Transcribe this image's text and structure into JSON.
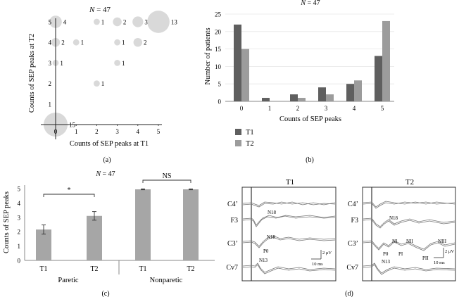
{
  "chart_data": [
    {
      "type": "bubble",
      "panel_label": "(a)",
      "title_prefix": "N",
      "title_value": " = 47",
      "xlabel": "Counts of SEP peaks at T1",
      "ylabel": "Counts of SEP peaks at T2",
      "xticks": [
        "0",
        "1",
        "2",
        "3",
        "4",
        "5"
      ],
      "yticks": [
        "1",
        "2",
        "3",
        "4",
        "5"
      ],
      "xlim": [
        0,
        5
      ],
      "ylim": [
        0,
        5
      ],
      "points": [
        {
          "x": 0,
          "y": 0,
          "n": 15,
          "label": "15"
        },
        {
          "x": 0,
          "y": 3,
          "n": 1,
          "label": "1"
        },
        {
          "x": 0,
          "y": 4,
          "n": 2,
          "label": "2"
        },
        {
          "x": 1,
          "y": 4,
          "n": 1,
          "label": "1"
        },
        {
          "x": 0,
          "y": 5,
          "n": 4,
          "label": "4"
        },
        {
          "x": 2,
          "y": 2,
          "n": 1,
          "label": "1"
        },
        {
          "x": 2,
          "y": 5,
          "n": 1,
          "label": "1"
        },
        {
          "x": 3,
          "y": 3,
          "n": 1,
          "label": "1"
        },
        {
          "x": 3,
          "y": 4,
          "n": 1,
          "label": "1"
        },
        {
          "x": 3,
          "y": 5,
          "n": 2,
          "label": "2"
        },
        {
          "x": 4,
          "y": 4,
          "n": 2,
          "label": "2"
        },
        {
          "x": 4,
          "y": 5,
          "n": 3,
          "label": "3"
        },
        {
          "x": 5,
          "y": 5,
          "n": 13,
          "label": "13"
        }
      ],
      "bubble_color": "#d9d9d9"
    },
    {
      "type": "bar",
      "panel_label": "(b)",
      "title_prefix": "N",
      "title_value": " = 47",
      "xlabel": "Counts of SEP peaks",
      "ylabel": "Number of patients",
      "categories": [
        "0",
        "1",
        "2",
        "3",
        "4",
        "5"
      ],
      "ylim": [
        0,
        25
      ],
      "yticks": [
        "0",
        "5",
        "10",
        "15",
        "20",
        "25"
      ],
      "series": [
        {
          "name": "T1",
          "values": [
            22,
            1,
            2,
            4,
            5,
            13
          ],
          "color": "#5f5f5f"
        },
        {
          "name": "T2",
          "values": [
            15,
            0,
            1,
            2,
            6,
            23
          ],
          "color": "#9c9c9c"
        }
      ]
    },
    {
      "type": "bar",
      "panel_label": "(c)",
      "title_prefix": "N",
      "title_value": " = 47",
      "ylabel": "Counts of SEP peaks",
      "ylim": [
        0,
        5
      ],
      "yticks": [
        "0",
        "1",
        "2",
        "3",
        "4",
        "5"
      ],
      "categories": [
        "T1",
        "T2",
        "T1",
        "T2"
      ],
      "groups": [
        "Paretic",
        "Nonparetic"
      ],
      "values": [
        2.15,
        3.1,
        4.95,
        4.95
      ],
      "errors": [
        0.32,
        0.3,
        0.03,
        0.03
      ],
      "bar_color": "#a6a6a6",
      "significance": [
        {
          "label": "*",
          "between": [
            0,
            1
          ]
        },
        {
          "label": "NS",
          "between": [
            2,
            3
          ]
        }
      ]
    }
  ],
  "waveforms": {
    "panel_label": "(d)",
    "panels": [
      {
        "title": "T1",
        "channels": [
          "C4’",
          "F3",
          "C3’",
          "Cv7"
        ],
        "peaks": [
          "N18",
          "N18",
          "P0",
          "N13"
        ],
        "scale_amp": "2 μV",
        "scale_time": "10 ms"
      },
      {
        "title": "T2",
        "channels": [
          "C4’",
          "F3",
          "C3’",
          "Cv7"
        ],
        "peaks": [
          "N18",
          "NI",
          "NII",
          "NIII",
          "P0",
          "PI",
          "PII",
          "N13"
        ],
        "scale_amp": "2 μV",
        "scale_time": "10 ms"
      }
    ]
  }
}
